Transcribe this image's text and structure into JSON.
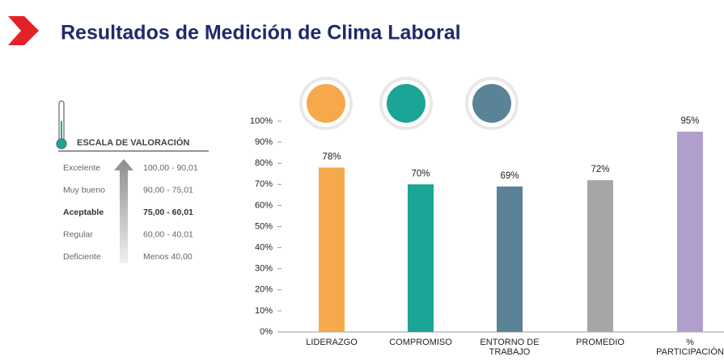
{
  "title": "Resultados de Medición de Clima Laboral",
  "scale": {
    "title": "ESCALA DE VALORACIÓN",
    "rows": [
      {
        "label": "Excelente",
        "range": "100,00 - 90,01"
      },
      {
        "label": "Muy bueno",
        "range": "90,00 - 75,01"
      },
      {
        "label": "Aceptable",
        "range": "75,00 - 60,01",
        "bold": true
      },
      {
        "label": "Regular",
        "range": "60,00 - 40,01"
      },
      {
        "label": "Deficiente",
        "range": "Menos 40,00"
      }
    ]
  },
  "chart_data": {
    "type": "bar",
    "categories": [
      "LIDERAZGO",
      "COMPROMISO",
      "ENTORNO DE TRABAJO",
      "PROMEDIO",
      "% PARTICIPACIÓN"
    ],
    "values": [
      78,
      70,
      69,
      72,
      95
    ],
    "value_labels": [
      "78%",
      "70%",
      "69%",
      "72%",
      "95%"
    ],
    "colors": [
      "#f5a94a",
      "#1aa596",
      "#5a8398",
      "#a6a6a6",
      "#b09fca"
    ],
    "ylim": [
      0,
      100
    ],
    "yticks": [
      {
        "value": 0,
        "label": "0%"
      },
      {
        "value": 10,
        "label": "10%"
      },
      {
        "value": 20,
        "label": "20%"
      },
      {
        "value": 30,
        "label": "30%"
      },
      {
        "value": 40,
        "label": "40%"
      },
      {
        "value": 50,
        "label": "50%"
      },
      {
        "value": 60,
        "label": "60%"
      },
      {
        "value": 70,
        "label": "70%"
      },
      {
        "value": 80,
        "label": "80%"
      },
      {
        "value": 90,
        "label": "90%"
      },
      {
        "value": 100,
        "label": "100%"
      }
    ]
  }
}
